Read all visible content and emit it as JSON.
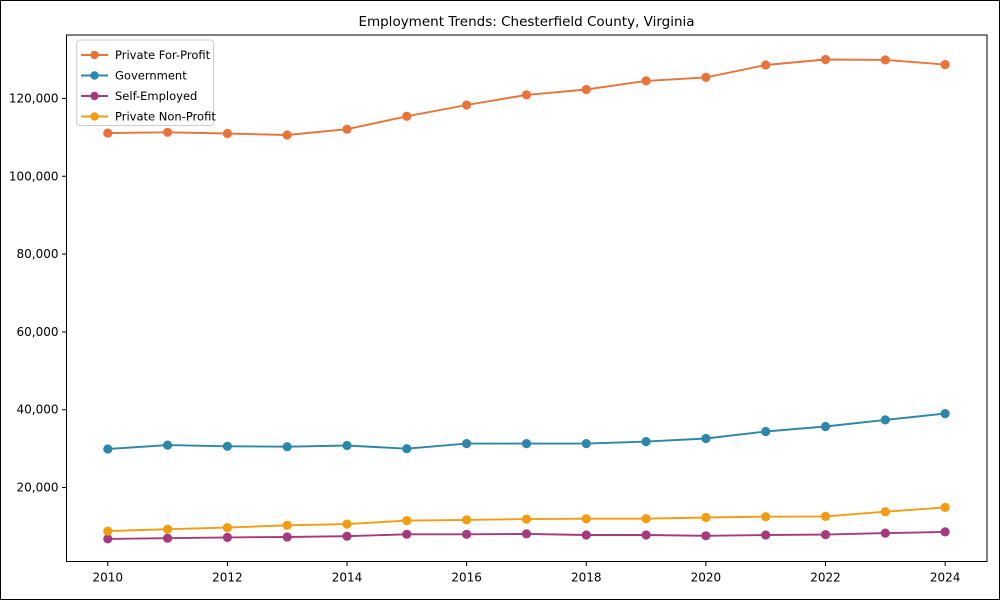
{
  "figure": {
    "title": "Employment Trends: Chesterfield County, Virginia"
  },
  "chart_data": {
    "type": "line",
    "title": "Employment Trends: Chesterfield County, Virginia",
    "xlabel": "",
    "ylabel": "",
    "x": [
      2010,
      2011,
      2012,
      2013,
      2014,
      2015,
      2016,
      2017,
      2018,
      2019,
      2020,
      2021,
      2022,
      2023,
      2024
    ],
    "series": [
      {
        "name": "Private For-Profit",
        "color": "#e8743c",
        "values": [
          111100,
          111300,
          111000,
          110600,
          112100,
          115400,
          118300,
          120900,
          122300,
          124500,
          125400,
          128600,
          130000,
          129900,
          128700
        ]
      },
      {
        "name": "Government",
        "color": "#2e86a8",
        "values": [
          29900,
          30900,
          30600,
          30500,
          30800,
          30000,
          31300,
          31300,
          31300,
          31800,
          32600,
          34400,
          35700,
          37400,
          39000
        ]
      },
      {
        "name": "Self-Employed",
        "color": "#a43b7d",
        "values": [
          6800,
          7000,
          7200,
          7300,
          7500,
          8000,
          8000,
          8100,
          7800,
          7800,
          7600,
          7800,
          7900,
          8300,
          8600
        ]
      },
      {
        "name": "Private Non-Profit",
        "color": "#f29c12",
        "values": [
          8800,
          9300,
          9700,
          10300,
          10600,
          11500,
          11700,
          11900,
          12000,
          12000,
          12300,
          12500,
          12600,
          13800,
          14900
        ]
      }
    ],
    "xticks": [
      2010,
      2012,
      2014,
      2016,
      2018,
      2020,
      2022,
      2024
    ],
    "yticks": [
      20000,
      40000,
      60000,
      80000,
      100000,
      120000
    ],
    "ytick_labels": [
      "20,000",
      "40,000",
      "60,000",
      "80,000",
      "100,000",
      "120,000"
    ],
    "xlim": [
      2009.31,
      2024.7
    ],
    "ylim": [
      1000,
      136300
    ],
    "grid": false,
    "legend": {
      "position": "upper left",
      "entries": [
        "Private For-Profit",
        "Government",
        "Self-Employed",
        "Private Non-Profit"
      ]
    }
  }
}
